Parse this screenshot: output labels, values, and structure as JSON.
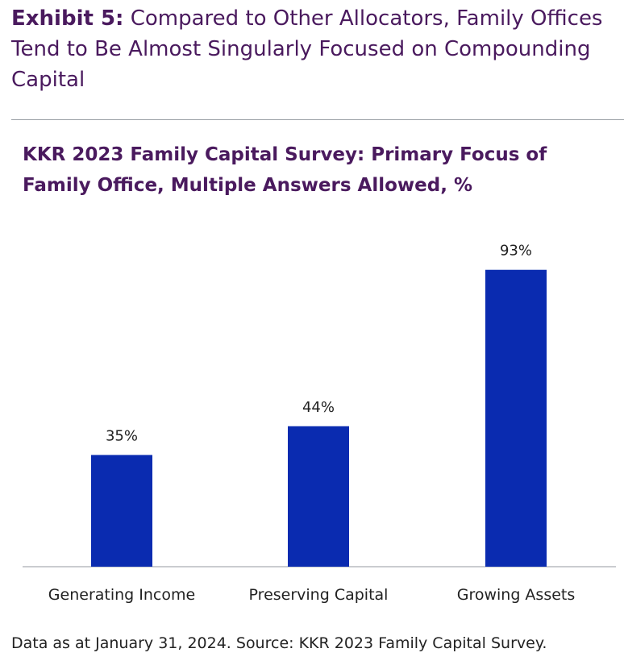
{
  "exhibit": {
    "label": "Exhibit 5:",
    "title": "Compared to Other Allocators, Family Offices Tend to Be Almost Singularly Focused on Compounding Capital"
  },
  "footnote": "Data as at January 31, 2024. Source: KKR 2023 Family Capital Survey.",
  "colors": {
    "bar": "#0a2bb0",
    "title": "#4a1a5e",
    "axis": "#b8bcc0",
    "text": "#222222"
  },
  "chart_data": {
    "type": "bar",
    "title": "KKR 2023 Family Capital Survey: Primary Focus of Family Office, Multiple Answers Allowed, %",
    "xlabel": "",
    "ylabel": "",
    "categories": [
      "Generating Income",
      "Preserving Capital",
      "Growing Assets"
    ],
    "values": [
      35,
      44,
      93
    ],
    "data_labels": [
      "35%",
      "44%",
      "93%"
    ],
    "ylim": [
      0,
      100
    ],
    "grid": false,
    "legend": "none"
  }
}
